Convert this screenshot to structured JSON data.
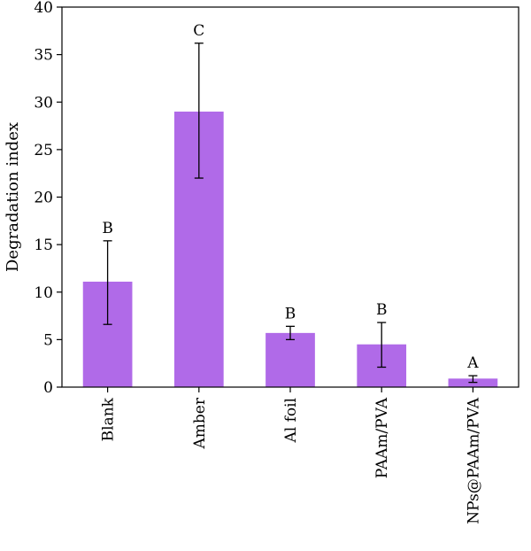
{
  "chart_data": {
    "type": "bar",
    "title": "",
    "xlabel": "",
    "ylabel": "Degradation index",
    "ylim": [
      0,
      40
    ],
    "yticks": [
      0,
      5,
      10,
      15,
      20,
      25,
      30,
      35,
      40
    ],
    "categories": [
      "Blank",
      "Amber",
      "Al foil",
      "PAAm/PVA",
      "NPs@PAAm/PVA"
    ],
    "values": [
      11.1,
      29.0,
      5.7,
      4.5,
      0.9
    ],
    "error_low": [
      6.6,
      22.0,
      5.0,
      2.1,
      0.5
    ],
    "error_high": [
      15.4,
      36.2,
      6.4,
      6.8,
      1.2
    ],
    "significance_labels": [
      "B",
      "C",
      "B",
      "B",
      "A"
    ],
    "bar_color": "#b06ae8",
    "grid": false,
    "legend": false
  }
}
